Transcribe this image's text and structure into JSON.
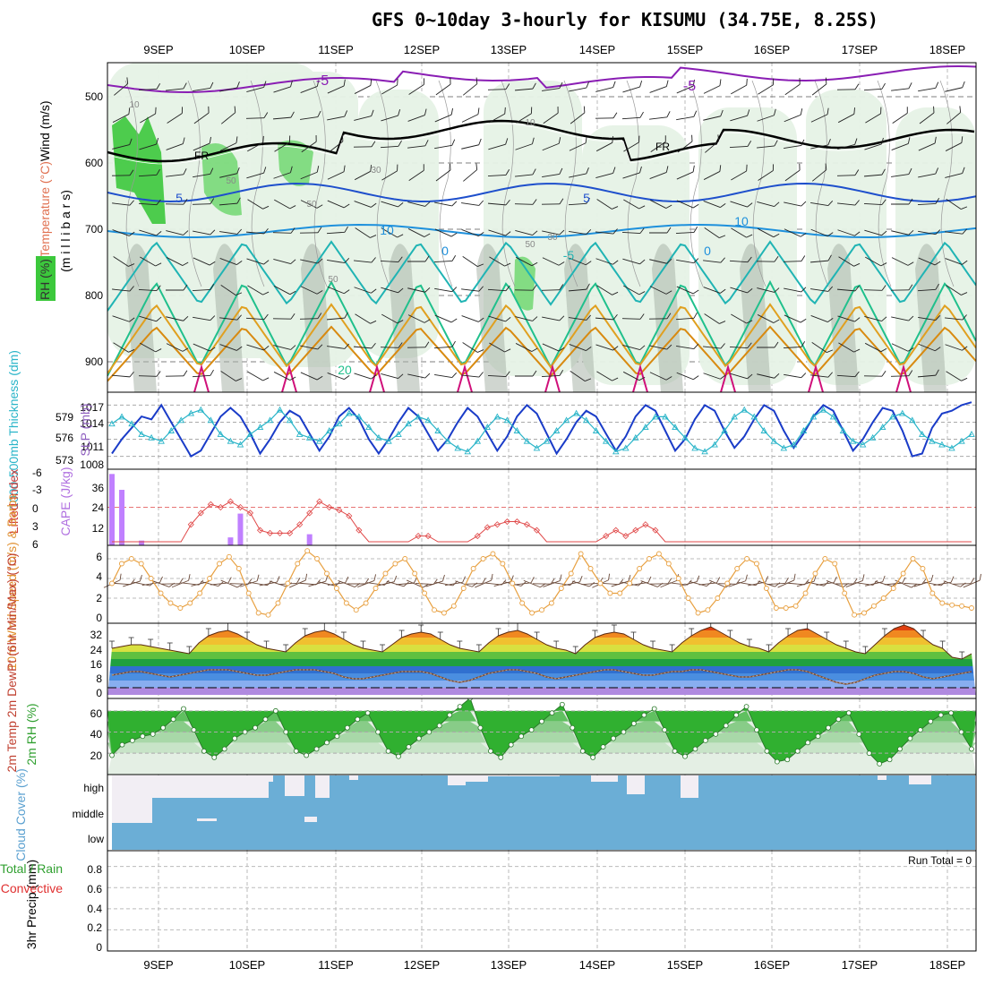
{
  "page": {
    "title": "GFS 0~10day 3-hourly for KISUMU (34.75E, 8.25S)",
    "dates": [
      "9SEP",
      "10SEP",
      "11SEP",
      "12SEP",
      "13SEP",
      "14SEP",
      "15SEP",
      "16SEP",
      "17SEP",
      "18SEP"
    ],
    "run_total": "Run Total = 0"
  },
  "colors": {
    "rh_green": "#3cc83c",
    "rh_light": "#e6f2e6",
    "rh_gray": "#a9b5a9",
    "temp_purple": "#8a1eb4",
    "temp_blue": "#1e4fcc",
    "temp_sky": "#1e90dc",
    "temp_teal": "#20b4b4",
    "temp_green": "#20c08c",
    "temp_orange": "#e0a020",
    "temp_magenta": "#d0107a",
    "slp_line": "#1a3cc8",
    "thickness_line": "#28b4c8",
    "cape_bar": "#c080ff",
    "li_line": "#e04848",
    "wind_line": "#e8a040",
    "barb": "#6b4a3a",
    "cloud": "#6baed6",
    "cloud_gap": "#f2eef4",
    "rh2m_fill": "#3cc83c"
  },
  "chart_data": [
    {
      "type": "heatmap",
      "id": "upper-air",
      "labels": {
        "axis_wind": "Wind (m/s)",
        "axis_temp": "Temperature (°C)",
        "axis_rh": "RH (%)",
        "axis_mb": "(m i l l i b a r s)"
      },
      "yticks": [
        "500",
        "600",
        "700",
        "800",
        "900"
      ],
      "contour_labels": [
        "-5",
        "-5",
        "FR",
        "FR",
        "5",
        "5",
        "10",
        "10",
        "-5",
        "0",
        "0",
        "20",
        "10",
        "10",
        "30",
        "30",
        "50",
        "50",
        "50",
        "50"
      ]
    },
    {
      "type": "line",
      "id": "slp",
      "ylabel_left": "1000-500mb Thickness (dm)",
      "ylabel_right": "SLP (mb)",
      "yticks_left": [
        "579",
        "576",
        "573"
      ],
      "yticks_right": [
        "1017",
        "1014",
        "1011",
        "1008"
      ],
      "series": [
        {
          "name": "SLP",
          "values": [
            1008.5,
            1011,
            1013,
            1015,
            1014.5,
            1017,
            1014,
            1011,
            1008,
            1009,
            1012,
            1015,
            1016.5,
            1015,
            1012,
            1008.5,
            1011,
            1014,
            1016,
            1015,
            1012,
            1009,
            1011.5,
            1015,
            1016.5,
            1014.5,
            1011,
            1008.5,
            1011,
            1014,
            1016.5,
            1015,
            1012,
            1009,
            1011,
            1014,
            1016.5,
            1015,
            1012,
            1009,
            1011.5,
            1015,
            1017,
            1015.5,
            1012,
            1008.5,
            1011,
            1014,
            1016,
            1015,
            1012,
            1009,
            1011.5,
            1015,
            1017,
            1016,
            1012.5,
            1009,
            1011,
            1014.5,
            1017,
            1016,
            1012.5,
            1009.5,
            1011.5,
            1014.5,
            1017,
            1016,
            1012.5,
            1009.5,
            1012,
            1015,
            1017,
            1016,
            1012.5,
            1009,
            1011,
            1014,
            1016.5,
            1016,
            1012.5,
            1008,
            1008.5,
            1013,
            1015.5,
            1016,
            1017,
            1017.5
          ]
        },
        {
          "name": "Thickness",
          "values": [
            577.5,
            578.5,
            577.5,
            576,
            575.5,
            575,
            576.5,
            578,
            579,
            579.5,
            578,
            576,
            575,
            574.5,
            576,
            577,
            578,
            579.5,
            578,
            576,
            575.5,
            575,
            576.5,
            577.5,
            579,
            578.5,
            577,
            575.5,
            575,
            576,
            577.5,
            578.5,
            578,
            576.5,
            575,
            574,
            573.5,
            575,
            577,
            578.5,
            578,
            576.5,
            575,
            574,
            575,
            576.5,
            578,
            579,
            578,
            576.5,
            575,
            573.5,
            574,
            575.5,
            577,
            578.5,
            578.5,
            577,
            575.5,
            574,
            573.5,
            574.5,
            576.5,
            578.5,
            579.5,
            578.5,
            576.5,
            575,
            574,
            574.5,
            576.5,
            578.5,
            579.5,
            578.5,
            576.5,
            575,
            574.5,
            575.5,
            577,
            578.5,
            579,
            578,
            576,
            575,
            574.5,
            574,
            575,
            576
          ]
        }
      ]
    },
    {
      "type": "bar",
      "id": "cape-li",
      "ylabel_left": "Lifted Index",
      "ylabel_right": "CAPE (J/kg)",
      "yticks_left": [
        "-6",
        "-3",
        "0",
        "3",
        "6"
      ],
      "yticks_right": [
        "36",
        "24",
        "12"
      ],
      "cape_values": [
        45,
        35,
        0,
        3,
        0,
        0,
        0,
        0,
        0,
        0,
        0,
        0,
        5,
        20,
        0,
        0,
        0,
        0,
        0,
        0,
        7,
        0,
        0,
        0,
        0,
        0,
        0,
        0,
        0,
        0,
        0,
        0,
        0,
        0,
        0,
        0,
        0,
        0,
        0,
        0,
        0,
        0,
        0,
        0,
        0,
        0,
        0,
        0,
        0,
        0,
        0,
        0,
        0,
        0,
        0,
        0,
        0,
        0,
        0,
        0,
        0,
        0,
        0,
        0,
        0,
        0,
        0,
        0,
        0,
        0,
        0,
        0,
        0,
        0,
        0,
        0,
        0,
        0,
        0,
        0,
        0,
        0,
        0,
        0,
        0,
        0,
        0,
        0
      ],
      "li_values": [
        6,
        6,
        6,
        6,
        6,
        6,
        6,
        6,
        3,
        1,
        -0.5,
        0,
        -1,
        0,
        1,
        4,
        4.5,
        4.5,
        4.5,
        3,
        1,
        -1,
        0,
        0.5,
        1.5,
        4,
        6,
        6,
        6,
        6,
        6,
        5,
        5,
        6,
        6,
        6,
        6,
        5,
        3.5,
        3,
        2.5,
        2.5,
        3,
        4,
        6,
        6,
        6,
        6,
        6,
        6,
        5,
        4,
        5,
        4,
        3,
        4,
        6,
        6,
        6,
        6,
        6,
        6,
        6,
        6,
        6,
        6,
        6,
        6,
        6,
        6,
        6,
        6,
        6,
        6,
        6,
        6,
        6,
        6,
        6,
        6,
        6,
        6,
        6,
        6,
        6,
        6,
        6,
        6
      ]
    },
    {
      "type": "line",
      "id": "wind10m",
      "ylabel": "10m Wind Speed (m/s) & Barbs",
      "yticks": [
        "6",
        "4",
        "2",
        "0"
      ],
      "values": [
        3.5,
        5.5,
        6,
        5.5,
        4,
        2.5,
        1.5,
        1,
        1.5,
        2.5,
        4,
        5.5,
        6.2,
        5,
        2.5,
        0.5,
        0.3,
        1.5,
        3.5,
        5.5,
        6.8,
        6,
        4.5,
        3,
        1.5,
        0.8,
        1.5,
        3,
        4.5,
        5.5,
        6,
        4.5,
        2.5,
        0.8,
        0.5,
        1.2,
        3,
        5,
        6,
        6.5,
        5.5,
        3.5,
        1.5,
        0.5,
        0.8,
        1.5,
        3,
        4.5,
        6.5,
        5,
        3.5,
        2.5,
        2.5,
        3.5,
        5,
        6,
        6.5,
        5.5,
        4,
        2,
        0.5,
        0.8,
        2,
        3.5,
        5,
        6,
        5.5,
        3,
        1,
        1,
        1.2,
        2.5,
        4.5,
        6,
        5.5,
        2.5,
        0.3,
        0.5,
        1.2,
        2,
        3,
        4.5,
        6,
        5,
        2.5,
        1.5,
        1.3,
        1.2,
        1
      ]
    },
    {
      "type": "area",
      "id": "temp2m",
      "ylabel": "2m Temp 2m DewPt (6hr Min/Max) (°C)",
      "yticks": [
        "32",
        "24",
        "16",
        "8",
        "0"
      ],
      "temp": [
        22,
        23,
        24,
        24,
        23,
        22,
        21,
        20,
        19,
        25,
        29,
        31,
        32,
        30,
        27,
        24,
        22,
        21,
        20,
        25,
        29,
        31,
        32,
        30,
        27,
        24,
        22,
        21,
        20,
        24,
        28,
        30,
        31,
        30,
        27,
        24,
        22,
        21,
        20,
        25,
        29,
        31,
        32,
        30,
        27,
        24,
        22,
        21,
        19,
        24,
        28,
        30,
        31,
        30,
        27,
        24,
        22,
        21,
        20,
        25,
        29,
        32,
        34,
        31,
        28,
        25,
        23,
        22,
        20,
        25,
        29,
        32,
        33,
        30,
        27,
        24,
        22,
        20,
        19,
        24,
        29,
        33,
        35,
        33,
        28,
        24,
        22,
        17,
        16,
        19
      ],
      "dewpt": [
        7,
        8,
        9,
        9,
        8,
        7,
        6,
        7,
        8,
        9,
        10,
        10,
        10,
        9,
        8,
        7,
        7,
        8,
        9,
        10,
        10,
        10,
        9,
        8,
        6,
        5,
        5,
        6,
        7,
        8,
        9,
        9,
        9,
        8,
        6,
        4,
        3,
        4,
        6,
        8,
        9,
        10,
        10,
        9,
        8,
        6,
        5,
        6,
        7,
        8,
        9,
        10,
        10,
        9,
        8,
        7,
        7,
        8,
        9,
        9,
        10,
        10,
        9,
        8,
        7,
        6,
        6,
        7,
        8,
        9,
        10,
        10,
        9,
        7,
        5,
        3,
        2,
        3,
        5,
        7,
        8,
        9,
        9,
        8,
        6,
        5,
        6,
        7,
        8,
        9
      ]
    },
    {
      "type": "area",
      "id": "rh2m",
      "ylabel": "2m RH (%)",
      "yticks": [
        "60",
        "40",
        "20"
      ],
      "values": [
        18,
        28,
        32,
        36,
        38,
        44,
        52,
        62,
        42,
        22,
        16,
        24,
        34,
        40,
        44,
        52,
        60,
        40,
        22,
        18,
        24,
        30,
        36,
        44,
        52,
        58,
        40,
        22,
        17,
        26,
        34,
        40,
        46,
        56,
        64,
        72,
        44,
        22,
        16,
        28,
        36,
        42,
        50,
        58,
        66,
        44,
        22,
        16,
        26,
        34,
        40,
        48,
        56,
        62,
        42,
        22,
        17,
        24,
        32,
        38,
        46,
        56,
        64,
        42,
        22,
        12,
        14,
        22,
        30,
        36,
        44,
        52,
        58,
        38,
        20,
        10,
        14,
        24,
        34,
        42,
        50,
        56,
        58,
        40,
        24
      ]
    },
    {
      "type": "bar",
      "id": "cloud",
      "ylabel": "Cloud Cover (%)",
      "ytick_labels": [
        "high",
        "middle",
        "low"
      ]
    },
    {
      "type": "bar",
      "id": "precip",
      "ylabel": "3hr Precip (mm)",
      "ylabel_total": "Total / Rain",
      "ylabel_conv": "Convective",
      "yticks": [
        "0.8",
        "0.6",
        "0.4",
        "0.2",
        "0"
      ],
      "values": []
    }
  ]
}
